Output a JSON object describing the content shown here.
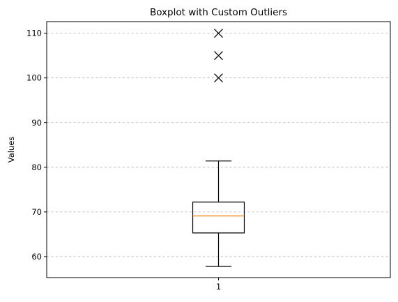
{
  "chart_data": {
    "type": "boxplot",
    "title": "Boxplot with Custom Outliers",
    "xlabel": "",
    "ylabel": "Values",
    "categories": [
      "1"
    ],
    "boxes": [
      {
        "label": "1",
        "whisker_low": 57.8,
        "q1": 65.3,
        "median": 69.1,
        "q3": 72.2,
        "whisker_high": 81.4,
        "outliers": [
          100,
          105,
          110
        ]
      }
    ],
    "ylim": [
      55.3,
      112.6
    ],
    "xlim": [
      0.5,
      1.5
    ],
    "yticks": [
      60,
      70,
      80,
      90,
      100,
      110
    ],
    "grid": {
      "axis": "y",
      "style": "dashed"
    },
    "colors": {
      "median": "#ff7f0e",
      "box": "#000000",
      "grid": "#b0b0b0"
    },
    "outlier_marker": "x"
  }
}
